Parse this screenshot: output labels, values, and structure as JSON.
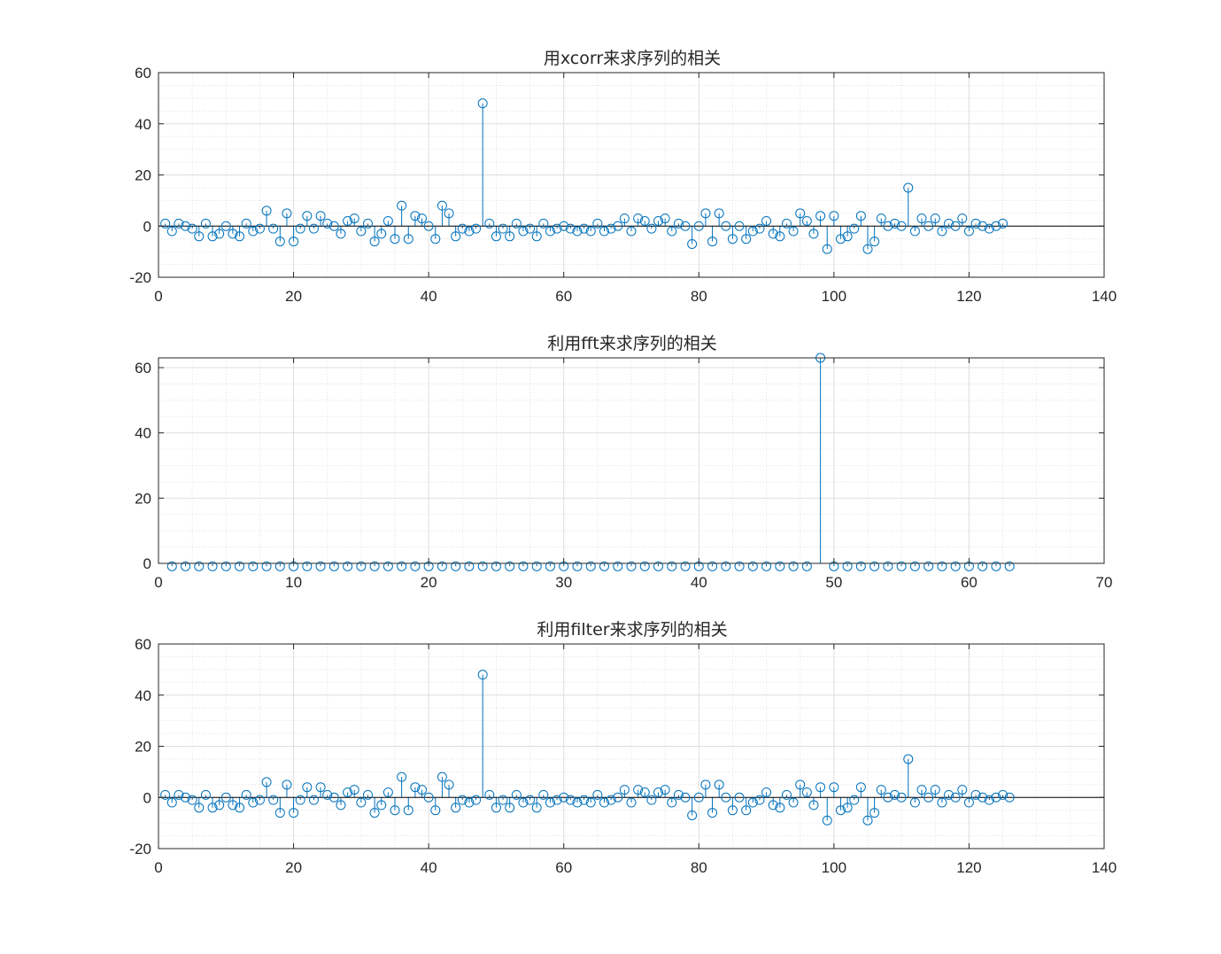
{
  "chart_data": [
    {
      "type": "stem",
      "title": "用xcorr来求序列的相关",
      "xlim": [
        0,
        140
      ],
      "ylim": [
        -20,
        60
      ],
      "xticks": [
        0,
        20,
        40,
        60,
        80,
        100,
        120,
        140
      ],
      "yticks": [
        -20,
        0,
        20,
        40,
        60
      ],
      "grid": true,
      "minor_grid": true,
      "color": "#0072BD",
      "x_start": 1,
      "values": [
        1,
        -2,
        1,
        0,
        -1,
        -4,
        1,
        -4,
        -3,
        0,
        -3,
        -4,
        1,
        -2,
        -1,
        6,
        -1,
        -6,
        5,
        -6,
        -1,
        4,
        -1,
        4,
        1,
        0,
        -3,
        2,
        3,
        -2,
        1,
        -6,
        -3,
        2,
        -5,
        8,
        -5,
        4,
        3,
        0,
        -5,
        8,
        5,
        -4,
        -1,
        -2,
        -1,
        48,
        1,
        -4,
        -1,
        -4,
        1,
        -2,
        -1,
        -4,
        1,
        -2,
        -1,
        0,
        -1,
        -2,
        -1,
        -2,
        1,
        -2,
        -1,
        0,
        3,
        -2,
        3,
        2,
        -1,
        2,
        3,
        -2,
        1,
        0,
        -7,
        0,
        5,
        -6,
        5,
        0,
        -5,
        0,
        -5,
        -2,
        -1,
        2,
        -3,
        -4,
        1,
        -2,
        5,
        2,
        -3,
        4,
        -9,
        4,
        -5,
        -4,
        -1,
        4,
        -9,
        -6,
        3,
        0,
        1,
        0,
        15,
        -2,
        3,
        0,
        3,
        -2,
        1,
        0,
        3,
        -2,
        1,
        0,
        -1,
        0,
        1
      ]
    },
    {
      "type": "stem",
      "title": "利用fft来求序列的相关",
      "xlim": [
        0,
        70
      ],
      "ylim": [
        0,
        63
      ],
      "xticks": [
        0,
        10,
        20,
        30,
        40,
        50,
        60,
        70
      ],
      "yticks": [
        0,
        20,
        40,
        60
      ],
      "grid": true,
      "minor_grid": true,
      "color": "#0072BD",
      "x_start": 1,
      "values": [
        -0.9,
        -0.9,
        -0.9,
        -0.9,
        -0.9,
        -0.9,
        -0.9,
        -0.9,
        -0.9,
        -0.9,
        -0.9,
        -0.9,
        -0.9,
        -0.9,
        -0.9,
        -0.9,
        -0.9,
        -0.9,
        -0.9,
        -0.9,
        -0.9,
        -0.9,
        -0.9,
        -0.9,
        -0.9,
        -0.9,
        -0.9,
        -0.9,
        -0.9,
        -0.9,
        -0.9,
        -0.9,
        -0.9,
        -0.9,
        -0.9,
        -0.9,
        -0.9,
        -0.9,
        -0.9,
        -0.9,
        -0.9,
        -0.9,
        -0.9,
        -0.9,
        -0.9,
        -0.9,
        -0.9,
        -0.9,
        63,
        -0.9,
        -0.9,
        -0.9,
        -0.9,
        -0.9,
        -0.9,
        -0.9,
        -0.9,
        -0.9,
        -0.9,
        -0.9,
        -0.9,
        -0.9,
        -0.9
      ]
    },
    {
      "type": "stem",
      "title": "利用filter来求序列的相关",
      "xlim": [
        0,
        140
      ],
      "ylim": [
        -20,
        60
      ],
      "xticks": [
        0,
        20,
        40,
        60,
        80,
        100,
        120,
        140
      ],
      "yticks": [
        -20,
        0,
        20,
        40,
        60
      ],
      "grid": true,
      "minor_grid": true,
      "color": "#0072BD",
      "x_start": 1,
      "values": [
        1,
        -2,
        1,
        0,
        -1,
        -4,
        1,
        -4,
        -3,
        0,
        -3,
        -4,
        1,
        -2,
        -1,
        6,
        -1,
        -6,
        5,
        -6,
        -1,
        4,
        -1,
        4,
        1,
        0,
        -3,
        2,
        3,
        -2,
        1,
        -6,
        -3,
        2,
        -5,
        8,
        -5,
        4,
        3,
        0,
        -5,
        8,
        5,
        -4,
        -1,
        -2,
        -1,
        48,
        1,
        -4,
        -1,
        -4,
        1,
        -2,
        -1,
        -4,
        1,
        -2,
        -1,
        0,
        -1,
        -2,
        -1,
        -2,
        1,
        -2,
        -1,
        0,
        3,
        -2,
        3,
        2,
        -1,
        2,
        3,
        -2,
        1,
        0,
        -7,
        0,
        5,
        -6,
        5,
        0,
        -5,
        0,
        -5,
        -2,
        -1,
        2,
        -3,
        -4,
        1,
        -2,
        5,
        2,
        -3,
        4,
        -9,
        4,
        -5,
        -4,
        -1,
        4,
        -9,
        -6,
        3,
        0,
        1,
        0,
        15,
        -2,
        3,
        0,
        3,
        -2,
        1,
        0,
        3,
        -2,
        1,
        0,
        -1,
        0,
        1,
        0
      ]
    }
  ]
}
